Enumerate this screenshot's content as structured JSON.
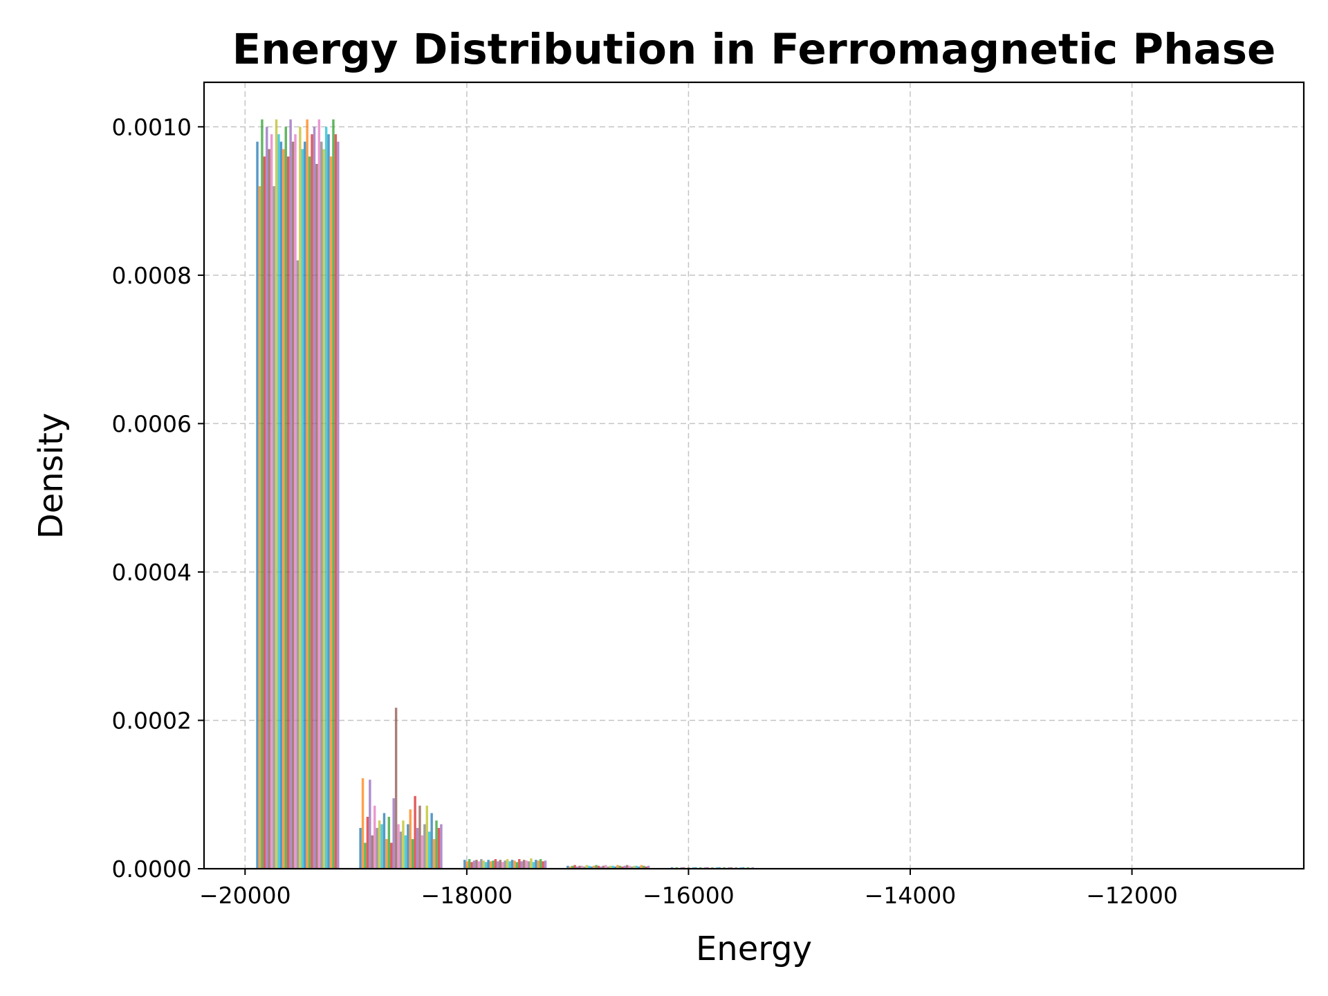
{
  "chart_data": {
    "type": "bar",
    "title": "Energy Distribution in Ferromagnetic Phase",
    "xlabel": "Energy",
    "ylabel": "Density",
    "xlim": [
      -20370,
      -10450
    ],
    "ylim": [
      0,
      0.00106
    ],
    "x_ticks": [
      -20000,
      -18000,
      -16000,
      -14000,
      -12000
    ],
    "x_tick_labels": [
      "−20000",
      "−18000",
      "−16000",
      "−14000",
      "−12000"
    ],
    "y_ticks": [
      0,
      0.0002,
      0.0004,
      0.0006,
      0.0008,
      0.001
    ],
    "y_tick_labels": [
      "0.0000",
      "0.0002",
      "0.0004",
      "0.0006",
      "0.0008",
      "0.0010"
    ],
    "grid": true,
    "series_colors": [
      "#1f77b4",
      "#ff7f0e",
      "#2ca02c",
      "#d62728",
      "#9467bd",
      "#8c564b",
      "#e377c2",
      "#7f7f7f",
      "#bcbd22",
      "#17becf"
    ],
    "bin_groups": [
      {
        "x_start": -19900,
        "x_end": -19150,
        "values": [
          0.00098,
          0.00092,
          0.00101,
          0.00096,
          0.001,
          0.00097,
          0.00099,
          0.00092,
          0.00101,
          0.00099,
          0.00098,
          0.00097,
          0.001,
          0.00096,
          0.00101,
          0.00098,
          0.00099,
          0.00082,
          0.001,
          0.00097,
          0.00098,
          0.00101,
          0.00096,
          0.00099,
          0.001,
          0.00095,
          0.00101,
          0.00098,
          0.00097,
          0.001,
          0.00099,
          0.00096,
          0.00101,
          0.00099,
          0.00098
        ]
      },
      {
        "x_start": -18970,
        "x_end": -18220,
        "values": [
          5.5e-05,
          0.000122,
          3.5e-05,
          7e-05,
          0.00012,
          4.5e-05,
          8.5e-05,
          5.5e-05,
          6.5e-05,
          6e-05,
          7.5e-05,
          4e-05,
          7e-05,
          3.5e-05,
          9.5e-05,
          0.000217,
          6e-05,
          5e-05,
          6.5e-05,
          4.5e-05,
          6e-05,
          8e-05,
          4e-05,
          9.8e-05,
          5.5e-05,
          8.5e-05,
          4.5e-05,
          6e-05,
          8.5e-05,
          5e-05,
          7.5e-05,
          4e-05,
          6.5e-05,
          5.5e-05,
          6e-05
        ]
      },
      {
        "x_start": -18030,
        "x_end": -17280,
        "values": [
          1.2e-05,
          1e-05,
          1.3e-05,
          9e-06,
          1.1e-05,
          1.2e-05,
          1e-05,
          1.3e-05,
          1.1e-05,
          9e-06,
          1.2e-05,
          1e-05,
          1.1e-05,
          1.3e-05,
          1e-05,
          1.2e-05,
          9e-06,
          1.1e-05,
          1.3e-05,
          1e-05,
          1.2e-05,
          1.1e-05,
          9e-06,
          1.3e-05,
          1e-05,
          1.2e-05,
          1.1e-05,
          1e-05,
          1.4e-05,
          9e-06,
          1.2e-05,
          1.1e-05,
          1.3e-05,
          1e-05,
          1.1e-05
        ]
      },
      {
        "x_start": -17100,
        "x_end": -16350,
        "values": [
          4e-06,
          3e-06,
          4e-06,
          5e-06,
          3e-06,
          4e-06,
          4e-06,
          3e-06,
          5e-06,
          4e-06,
          3e-06,
          4e-06,
          5e-06,
          4e-06,
          3e-06,
          4e-06,
          5e-06,
          3e-06,
          4e-06,
          4e-06,
          3e-06,
          5e-06,
          4e-06,
          3e-06,
          4e-06,
          5e-06,
          4e-06,
          3e-06,
          4e-06,
          4e-06,
          3e-06,
          5e-06,
          4e-06,
          3e-06,
          4e-06
        ]
      },
      {
        "x_start": -16160,
        "x_end": -15410,
        "values": [
          2e-06,
          1e-06,
          2e-06,
          1e-06,
          2e-06,
          2e-06,
          1e-06,
          2e-06,
          1e-06,
          2e-06,
          2e-06,
          1e-06,
          2e-06,
          1e-06,
          2e-06,
          2e-06,
          1e-06,
          2e-06,
          1e-06,
          2e-06,
          2e-06,
          1e-06,
          2e-06,
          1e-06,
          2e-06,
          2e-06,
          1e-06,
          2e-06,
          1e-06,
          2e-06,
          2e-06,
          1e-06,
          2e-06,
          1e-06,
          2e-06
        ]
      }
    ]
  }
}
